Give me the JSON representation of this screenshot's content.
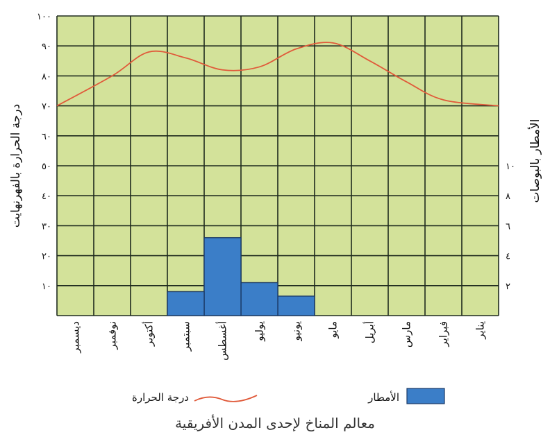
{
  "chart_data": {
    "type": "bar+line",
    "categories": [
      "يناير",
      "فبراير",
      "مارس",
      "أبريل",
      "مايو",
      "يونيو",
      "يوليو",
      "أغسطس",
      "سبتمبر",
      "أكتوبر",
      "نوفمبر",
      "ديسمبر"
    ],
    "series": [
      {
        "name": "درجة الحرارة",
        "type": "line",
        "axis": "left",
        "values": [
          70,
          72,
          78,
          85,
          91,
          89,
          83,
          82,
          86,
          88,
          80,
          70
        ]
      },
      {
        "name": "الأمطار",
        "type": "bar",
        "axis": "right",
        "values": [
          0,
          0,
          0,
          0,
          0,
          1.3,
          2.2,
          5.2,
          1.6,
          0,
          0,
          0
        ]
      }
    ],
    "left_axis": {
      "label": "درجة الحرارة بالفهرنهايت",
      "ticks": [
        "١٠٠",
        "٩٠",
        "٨٠",
        "٧٠",
        "٦٠",
        "٥٠",
        "٤٠",
        "٣٠",
        "٢٠",
        "١٠"
      ],
      "tick_values": [
        100,
        90,
        80,
        70,
        60,
        50,
        40,
        30,
        20,
        10
      ],
      "ylim": [
        0,
        100
      ]
    },
    "right_axis": {
      "label": "الأمطار بالبوصات",
      "ticks": [
        "١٠",
        "٨",
        "٦",
        "٤",
        "٢"
      ],
      "tick_values": [
        10,
        8,
        6,
        4,
        2
      ],
      "ylim": [
        0,
        20
      ]
    },
    "grid": true,
    "legend": {
      "placement": "bottom",
      "items": [
        {
          "label": "درجة الحرارة",
          "kind": "line"
        },
        {
          "label": "الأمطار",
          "kind": "bar"
        }
      ]
    },
    "caption": "معالم المناخ لإحدى المدن الأفريقية"
  },
  "colors": {
    "plot_background": "#d3e29a",
    "grid": "#1e2a1e",
    "temperature_line": "#e05a3a",
    "rain_bar": "#3b7ec8",
    "rain_bar_edge": "#1b3a66"
  }
}
